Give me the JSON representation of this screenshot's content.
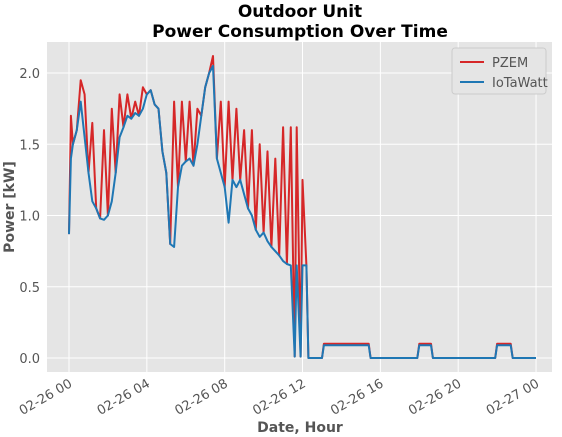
{
  "chart_data": {
    "type": "line",
    "title": [
      "Outdoor Unit",
      "Power Consumption Over Time"
    ],
    "xlabel": "Date, Hour",
    "ylabel": "Power [kW]",
    "x": [
      0.0,
      0.1,
      0.2,
      0.4,
      0.6,
      0.8,
      1.0,
      1.2,
      1.4,
      1.6,
      1.8,
      2.0,
      2.2,
      2.4,
      2.6,
      2.8,
      3.0,
      3.2,
      3.4,
      3.6,
      3.8,
      4.0,
      4.2,
      4.4,
      4.6,
      4.8,
      5.0,
      5.2,
      5.4,
      5.6,
      5.8,
      6.0,
      6.2,
      6.4,
      6.6,
      6.8,
      7.0,
      7.2,
      7.4,
      7.6,
      7.8,
      8.0,
      8.2,
      8.4,
      8.6,
      8.8,
      9.0,
      9.2,
      9.4,
      9.6,
      9.8,
      10.0,
      10.2,
      10.4,
      10.6,
      10.8,
      11.0,
      11.2,
      11.4,
      11.6,
      11.7,
      11.9,
      12.0,
      12.2,
      12.3,
      12.5,
      13.0,
      13.1,
      15.4,
      15.5,
      17.9,
      18.0,
      18.6,
      18.7,
      21.9,
      22.0,
      22.7,
      22.8,
      24.0
    ],
    "series": [
      {
        "name": "PZEM",
        "color": "#d62728",
        "values": [
          0.87,
          1.7,
          1.5,
          1.6,
          1.95,
          1.85,
          1.3,
          1.65,
          1.05,
          0.98,
          1.6,
          1.0,
          1.75,
          1.3,
          1.85,
          1.62,
          1.85,
          1.68,
          1.8,
          1.7,
          1.9,
          1.85,
          1.88,
          1.78,
          1.75,
          1.45,
          1.3,
          0.8,
          1.8,
          1.2,
          1.8,
          1.38,
          1.8,
          1.35,
          1.75,
          1.7,
          1.9,
          2.0,
          2.12,
          1.4,
          1.8,
          1.2,
          1.8,
          1.25,
          1.75,
          1.25,
          1.6,
          1.05,
          1.6,
          0.9,
          1.5,
          0.88,
          1.45,
          0.78,
          1.4,
          0.72,
          1.62,
          0.66,
          1.62,
          0.01,
          1.62,
          0.01,
          1.25,
          0.65,
          0.0,
          0.0,
          0.0,
          0.1,
          0.1,
          0.0,
          0.0,
          0.1,
          0.1,
          0.0,
          0.0,
          0.1,
          0.1,
          0.0,
          0.0
        ]
      },
      {
        "name": "IoTaWatt",
        "color": "#1f77b4",
        "values": [
          0.87,
          1.4,
          1.5,
          1.6,
          1.8,
          1.55,
          1.3,
          1.1,
          1.05,
          0.98,
          0.97,
          1.0,
          1.1,
          1.3,
          1.55,
          1.62,
          1.7,
          1.68,
          1.72,
          1.7,
          1.75,
          1.85,
          1.88,
          1.78,
          1.75,
          1.45,
          1.3,
          0.8,
          0.78,
          1.2,
          1.35,
          1.38,
          1.4,
          1.35,
          1.5,
          1.7,
          1.9,
          2.0,
          2.05,
          1.4,
          1.3,
          1.2,
          0.95,
          1.25,
          1.2,
          1.25,
          1.15,
          1.05,
          1.0,
          0.9,
          0.85,
          0.88,
          0.82,
          0.78,
          0.75,
          0.72,
          0.68,
          0.66,
          0.65,
          0.01,
          0.65,
          0.01,
          0.65,
          0.65,
          0.0,
          0.0,
          0.0,
          0.09,
          0.09,
          0.0,
          0.0,
          0.09,
          0.09,
          0.0,
          0.0,
          0.09,
          0.09,
          0.0,
          0.0
        ]
      }
    ],
    "xlim": [
      -1.13,
      24.82
    ],
    "xticks": [
      {
        "value": 0,
        "label": "02-26 00"
      },
      {
        "value": 4,
        "label": "02-26 04"
      },
      {
        "value": 8,
        "label": "02-26 08"
      },
      {
        "value": 12,
        "label": "02-26 12"
      },
      {
        "value": 16,
        "label": "02-26 16"
      },
      {
        "value": 20,
        "label": "02-26 20"
      },
      {
        "value": 24,
        "label": "02-27 00"
      }
    ],
    "ylim": [
      -0.098,
      2.218
    ],
    "yticks": [
      {
        "value": 0,
        "label": "0.0"
      },
      {
        "value": 0.5,
        "label": "0.5"
      },
      {
        "value": 1,
        "label": "1.0"
      },
      {
        "value": 1.5,
        "label": "1.5"
      },
      {
        "value": 2,
        "label": "2.0"
      }
    ],
    "grid": true,
    "legend": "upper right"
  }
}
